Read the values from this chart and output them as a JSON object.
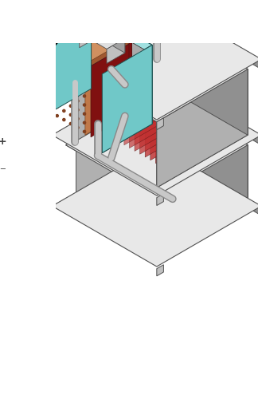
{
  "bg_color": "#ffffff",
  "gray_light": "#d0d0d0",
  "gray_mid": "#b0b0b0",
  "gray_dark": "#909090",
  "gray_top": "#e8e8e8",
  "gray_face": "#c0c0c0",
  "red_fill": "#a03030",
  "red_line": "#c03030",
  "red_dark": "#801010",
  "blue_fill": "#8888b8",
  "blue_dark": "#505080",
  "blue_line": "#6060a0",
  "teal_fill": "#70c8c8",
  "teal_dark": "#3a9898",
  "teal_right": "#50b0b0",
  "teal_top": "#a0e0e0",
  "orange_fill": "#c07848",
  "orange_dark": "#a05830",
  "tan_fill": "#d4b896",
  "tan_dark": "#b8987a",
  "tan_top": "#e8ceb0",
  "pipe_light": "#c8c8c8",
  "pipe_dark": "#888888",
  "black_wire": "#101010",
  "red_wire": "#dd2020",
  "white": "#ffffff"
}
